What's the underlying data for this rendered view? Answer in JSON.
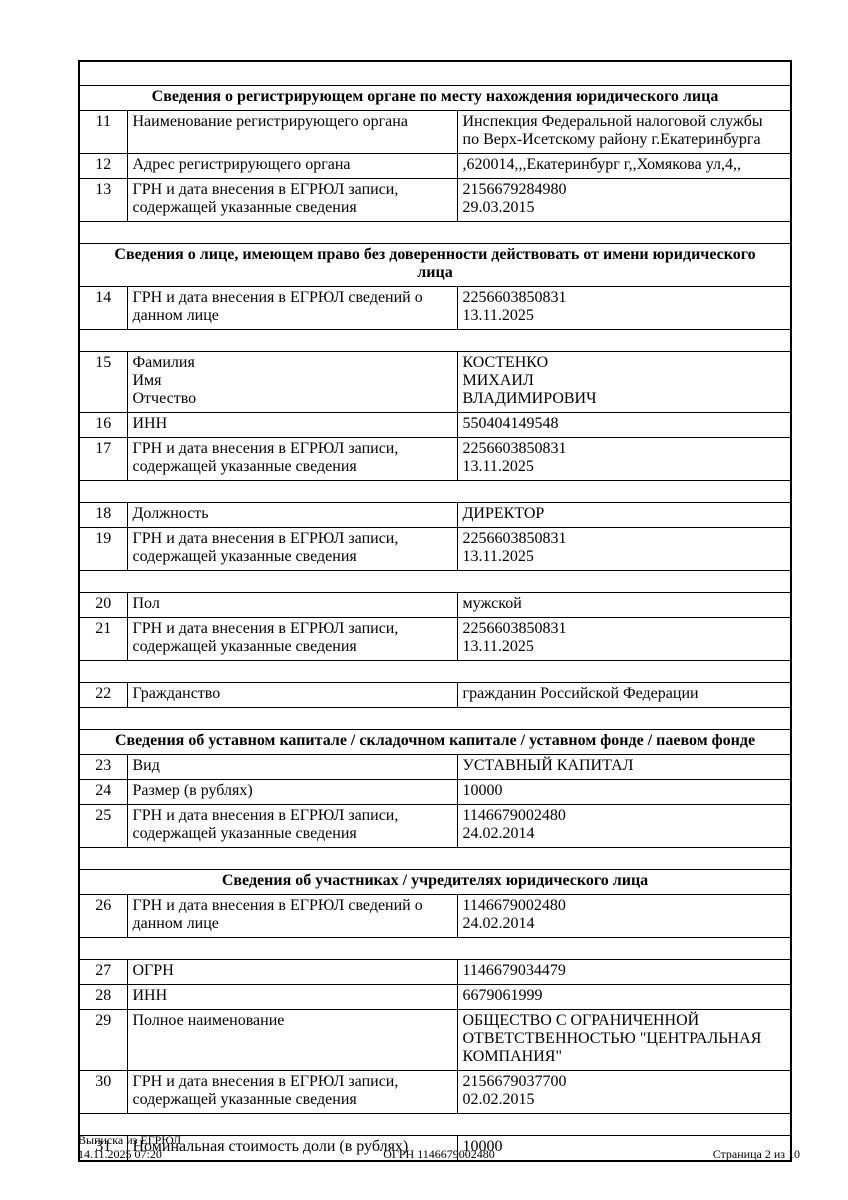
{
  "colors": {
    "page_bg": "#ffffff",
    "text": "#000000",
    "border": "#000000"
  },
  "footer": {
    "doc_type": "Выписка из ЕГРЮЛ",
    "generated_at": "14.11.2025 07:20",
    "ogrn_line": "ОГРН 1146679002480",
    "page_indicator": "Страница 2 из 10"
  },
  "table": {
    "rows": [
      {
        "type": "spacer"
      },
      {
        "type": "section",
        "title_lines": [
          "Сведения о регистрирующем органе по месту нахождения юридического лица"
        ]
      },
      {
        "type": "data",
        "num": "11",
        "label_lines": [
          "Наименование регистрирующего органа"
        ],
        "value_lines": [
          "Инспекция Федеральной налоговой службы",
          "по Верх-Исетскому району г.Екатеринбурга"
        ]
      },
      {
        "type": "data",
        "num": "12",
        "label_lines": [
          "Адрес регистрирующего органа"
        ],
        "value_lines": [
          ",620014,,,Екатеринбург г,,Хомякова ул,4,,"
        ]
      },
      {
        "type": "data",
        "num": "13",
        "label_lines": [
          "ГРН и дата внесения в ЕГРЮЛ записи,",
          "содержащей указанные сведения"
        ],
        "value_lines": [
          "2156679284980",
          "29.03.2015"
        ]
      },
      {
        "type": "spacer"
      },
      {
        "type": "section",
        "title_lines": [
          "Сведения о лице, имеющем право без доверенности действовать от имени юридического",
          "лица"
        ]
      },
      {
        "type": "data",
        "num": "14",
        "label_lines": [
          "ГРН и дата внесения в ЕГРЮЛ сведений о",
          "данном лице"
        ],
        "value_lines": [
          "2256603850831",
          "13.11.2025"
        ]
      },
      {
        "type": "spacer"
      },
      {
        "type": "data",
        "num": "15",
        "label_lines": [
          "Фамилия",
          "Имя",
          "Отчество"
        ],
        "value_lines": [
          "КОСТЕНКО",
          "МИХАИЛ",
          "ВЛАДИМИРОВИЧ"
        ]
      },
      {
        "type": "data",
        "num": "16",
        "label_lines": [
          "ИНН"
        ],
        "value_lines": [
          "550404149548"
        ]
      },
      {
        "type": "data",
        "num": "17",
        "label_lines": [
          "ГРН и дата внесения в ЕГРЮЛ записи,",
          "содержащей указанные сведения"
        ],
        "value_lines": [
          "2256603850831",
          "13.11.2025"
        ]
      },
      {
        "type": "spacer"
      },
      {
        "type": "data",
        "num": "18",
        "label_lines": [
          "Должность"
        ],
        "value_lines": [
          "ДИРЕКТОР"
        ]
      },
      {
        "type": "data",
        "num": "19",
        "label_lines": [
          "ГРН и дата внесения в ЕГРЮЛ записи,",
          "содержащей указанные сведения"
        ],
        "value_lines": [
          "2256603850831",
          "13.11.2025"
        ]
      },
      {
        "type": "spacer"
      },
      {
        "type": "data",
        "num": "20",
        "label_lines": [
          "Пол"
        ],
        "value_lines": [
          "мужской"
        ]
      },
      {
        "type": "data",
        "num": "21",
        "label_lines": [
          "ГРН и дата внесения в ЕГРЮЛ записи,",
          "содержащей указанные сведения"
        ],
        "value_lines": [
          "2256603850831",
          "13.11.2025"
        ]
      },
      {
        "type": "spacer"
      },
      {
        "type": "data",
        "num": "22",
        "label_lines": [
          "Гражданство"
        ],
        "value_lines": [
          "гражданин Российской Федерации"
        ]
      },
      {
        "type": "spacer"
      },
      {
        "type": "section",
        "title_lines": [
          "Сведения об уставном капитале / складочном капитале / уставном фонде / паевом фонде"
        ]
      },
      {
        "type": "data",
        "num": "23",
        "label_lines": [
          "Вид"
        ],
        "value_lines": [
          "УСТАВНЫЙ КАПИТАЛ"
        ]
      },
      {
        "type": "data",
        "num": "24",
        "label_lines": [
          "Размер (в рублях)"
        ],
        "value_lines": [
          "10000"
        ]
      },
      {
        "type": "data",
        "num": "25",
        "label_lines": [
          "ГРН и дата внесения в ЕГРЮЛ записи,",
          "содержащей указанные сведения"
        ],
        "value_lines": [
          "1146679002480",
          "24.02.2014"
        ]
      },
      {
        "type": "spacer"
      },
      {
        "type": "section",
        "title_lines": [
          "Сведения об участниках / учредителях юридического лица"
        ]
      },
      {
        "type": "data",
        "num": "26",
        "label_lines": [
          "ГРН и дата внесения в ЕГРЮЛ сведений о",
          "данном лице"
        ],
        "value_lines": [
          "1146679002480",
          "24.02.2014"
        ]
      },
      {
        "type": "spacer"
      },
      {
        "type": "data",
        "num": "27",
        "label_lines": [
          "ОГРН"
        ],
        "value_lines": [
          "1146679034479"
        ]
      },
      {
        "type": "data",
        "num": "28",
        "label_lines": [
          "ИНН"
        ],
        "value_lines": [
          "6679061999"
        ]
      },
      {
        "type": "data",
        "num": "29",
        "label_lines": [
          "Полное наименование"
        ],
        "value_lines": [
          "ОБЩЕСТВО С ОГРАНИЧЕННОЙ",
          "ОТВЕТСТВЕННОСТЬЮ \"ЦЕНТРАЛЬНАЯ",
          "КОМПАНИЯ\""
        ]
      },
      {
        "type": "data",
        "num": "30",
        "label_lines": [
          "ГРН и дата внесения в ЕГРЮЛ записи,",
          "содержащей указанные сведения"
        ],
        "value_lines": [
          "2156679037700",
          "02.02.2015"
        ]
      },
      {
        "type": "spacer"
      },
      {
        "type": "data",
        "num": "31",
        "label_lines": [
          "Номинальная стоимость доли (в рублях)"
        ],
        "value_lines": [
          "10000"
        ]
      }
    ]
  }
}
